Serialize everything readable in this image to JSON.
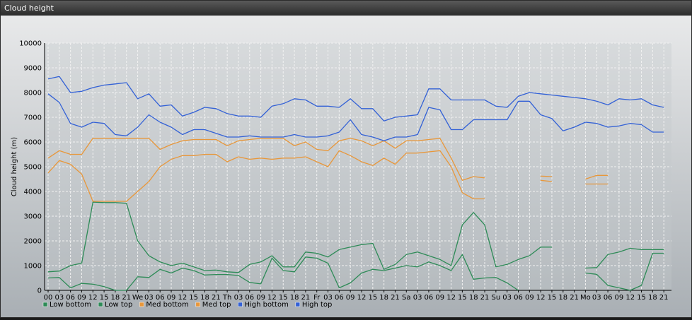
{
  "window": {
    "title": "Cloud height"
  },
  "chart_data": {
    "type": "line",
    "ylabel": "Cloud height (m)",
    "xlabel": "",
    "ylim": [
      0,
      10000
    ],
    "yticks": [
      0,
      1000,
      2000,
      3000,
      4000,
      5000,
      6000,
      7000,
      8000,
      9000,
      10000
    ],
    "grid": true,
    "legend_placement": "bottom-left",
    "x_tick_labels": [
      "00",
      "03",
      "06",
      "09",
      "12",
      "15",
      "18",
      "21",
      "We",
      "03",
      "06",
      "09",
      "12",
      "15",
      "18",
      "21",
      "Th",
      "03",
      "06",
      "09",
      "12",
      "15",
      "18",
      "21",
      "Fr",
      "03",
      "06",
      "09",
      "12",
      "15",
      "18",
      "21",
      "Sa",
      "03",
      "06",
      "09",
      "12",
      "15",
      "18",
      "21",
      "Su",
      "03",
      "06",
      "09",
      "12",
      "15",
      "18",
      "21",
      "Mo",
      "03",
      "06",
      "09",
      "12",
      "15",
      "18",
      "21"
    ],
    "series": [
      {
        "name": "Low bottom",
        "color": "#2e8b57",
        "values": [
          500,
          520,
          100,
          280,
          250,
          150,
          0,
          0,
          550,
          520,
          850,
          700,
          900,
          800,
          620,
          640,
          640,
          600,
          320,
          260,
          1300,
          800,
          750,
          1350,
          1300,
          1100,
          100,
          300,
          700,
          850,
          800,
          900,
          1000,
          950,
          1150,
          1000,
          800,
          1450,
          450,
          500,
          520,
          300,
          0,
          null,
          null,
          null,
          null,
          null,
          700,
          650,
          200,
          100,
          0,
          200,
          1500,
          1500
        ]
      },
      {
        "name": "Low top",
        "color": "#2e8b57",
        "values": [
          750,
          780,
          1000,
          1100,
          3570,
          3550,
          3550,
          3520,
          2000,
          1400,
          1150,
          1000,
          1100,
          950,
          800,
          820,
          750,
          720,
          1050,
          1150,
          1400,
          950,
          950,
          1550,
          1500,
          1350,
          1650,
          1750,
          1850,
          1900,
          850,
          1050,
          1450,
          1550,
          1400,
          1250,
          1000,
          2650,
          3150,
          2650,
          950,
          1050,
          1250,
          1400,
          1750,
          1750,
          null,
          null,
          900,
          920,
          1450,
          1550,
          1700,
          1650,
          1650,
          1650
        ]
      },
      {
        "name": "Med bottom",
        "color": "#e8973a",
        "values": [
          4750,
          5250,
          5100,
          4700,
          3600,
          3600,
          3600,
          3600,
          4000,
          4400,
          5000,
          5300,
          5450,
          5450,
          5500,
          5500,
          5200,
          5400,
          5300,
          5350,
          5300,
          5350,
          5350,
          5400,
          5200,
          5000,
          5650,
          5450,
          5200,
          5050,
          5350,
          5100,
          5550,
          5550,
          5600,
          5650,
          5000,
          3950,
          3700,
          3700,
          null,
          null,
          null,
          null,
          4450,
          4400,
          null,
          null,
          4300,
          4300,
          4300,
          null,
          null,
          null,
          null,
          null
        ]
      },
      {
        "name": "Med top",
        "color": "#e8973a",
        "values": [
          5350,
          5650,
          5500,
          5500,
          6150,
          6150,
          6150,
          6150,
          6150,
          6150,
          5700,
          5900,
          6050,
          6100,
          6100,
          6100,
          5850,
          6050,
          6100,
          6150,
          6150,
          6150,
          5850,
          6000,
          5700,
          5650,
          6050,
          6150,
          6050,
          5850,
          6050,
          5750,
          6050,
          6050,
          6100,
          6150,
          5350,
          4450,
          4600,
          4550,
          null,
          null,
          null,
          null,
          4620,
          4600,
          null,
          null,
          4500,
          4650,
          4650,
          null,
          null,
          null,
          null,
          null
        ]
      },
      {
        "name": "High bottom",
        "color": "#3361d6",
        "values": [
          7950,
          7600,
          6750,
          6600,
          6800,
          6750,
          6300,
          6250,
          6600,
          7100,
          6800,
          6600,
          6300,
          6500,
          6500,
          6350,
          6200,
          6200,
          6250,
          6200,
          6200,
          6200,
          6300,
          6200,
          6200,
          6250,
          6400,
          6900,
          6300,
          6200,
          6050,
          6200,
          6200,
          6300,
          7400,
          7300,
          6500,
          6500,
          6900,
          6900,
          6900,
          6900,
          7650,
          7650,
          7100,
          6950,
          6450,
          6600,
          6800,
          6750,
          6600,
          6650,
          6750,
          6700,
          6400,
          6400
        ]
      },
      {
        "name": "High top",
        "color": "#3361d6",
        "values": [
          8550,
          8650,
          8000,
          8050,
          8200,
          8300,
          8350,
          8400,
          7750,
          7950,
          7450,
          7500,
          7050,
          7200,
          7400,
          7350,
          7150,
          7050,
          7050,
          7000,
          7450,
          7550,
          7750,
          7700,
          7450,
          7450,
          7400,
          7750,
          7350,
          7350,
          6850,
          7000,
          7050,
          7100,
          8150,
          8150,
          7700,
          7700,
          7700,
          7700,
          7450,
          7400,
          7850,
          8000,
          7950,
          7900,
          7850,
          7800,
          7750,
          7650,
          7500,
          7750,
          7700,
          7750,
          7500,
          7400
        ]
      }
    ]
  }
}
